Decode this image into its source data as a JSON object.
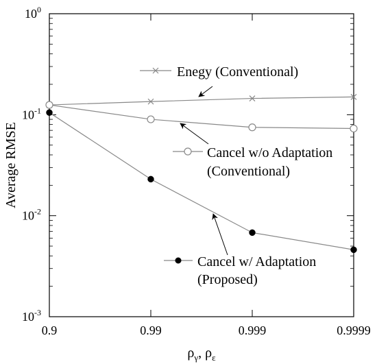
{
  "chart_data": {
    "type": "line",
    "title": "",
    "xlabel": "ρ",
    "xlabel_sub1": "γ",
    "xlabel_sep": ", ρ",
    "xlabel_sub2": "ε",
    "ylabel": "Average RMSE",
    "y_scale": "log",
    "ylim": [
      0.001,
      1
    ],
    "x_categories": [
      "0.9",
      "0.99",
      "0.999",
      "0.9999"
    ],
    "y_ticks": [
      {
        "value": 0.001,
        "base": "10",
        "exp": "-3"
      },
      {
        "value": 0.01,
        "base": "10",
        "exp": "-2"
      },
      {
        "value": 0.1,
        "base": "10",
        "exp": "-1"
      },
      {
        "value": 1,
        "base": "10",
        "exp": "0"
      }
    ],
    "grid": false,
    "series": [
      {
        "name": "Enegy (Conventional)",
        "label_lines": [
          "Enegy (Conventional)"
        ],
        "marker": "x",
        "color": "#888888",
        "values": [
          0.125,
          0.135,
          0.145,
          0.15
        ]
      },
      {
        "name": "Cancel w/o Adaptation (Conventional)",
        "label_lines": [
          "Cancel w/o Adaptation",
          "(Conventional)"
        ],
        "marker": "open-circle",
        "color": "#888888",
        "values": [
          0.125,
          0.09,
          0.075,
          0.073
        ]
      },
      {
        "name": "Cancel w/ Adaptation (Proposed)",
        "label_lines": [
          "Cancel w/ Adaptation",
          "(Proposed)"
        ],
        "marker": "filled-circle",
        "color": "#888888",
        "values": [
          0.105,
          0.023,
          0.0068,
          0.0046
        ]
      }
    ]
  }
}
